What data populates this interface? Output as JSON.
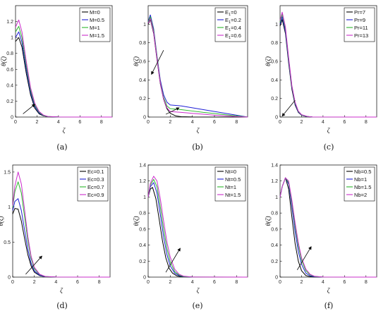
{
  "chart_data": [
    {
      "type": "line",
      "caption": "(a)",
      "xlabel": "ζ",
      "ylabel": "θ(ζ)",
      "xlim": [
        0,
        9
      ],
      "ylim": [
        0,
        1.4
      ],
      "xticks": [
        0,
        2,
        4,
        6,
        8
      ],
      "yticks": [
        0,
        0.2,
        0.4,
        0.6,
        0.8,
        1,
        1.2
      ],
      "legend_position": "top-right",
      "arrow": {
        "from": [
          0.7,
          0.04
        ],
        "to": [
          1.8,
          0.16
        ]
      },
      "series": [
        {
          "name": "M=0",
          "color": "#000000",
          "x": [
            0,
            0.3,
            0.6,
            1.0,
            1.4,
            1.8,
            2.2,
            2.6,
            3.0,
            4.0,
            9.0
          ],
          "y": [
            0.95,
            1.0,
            0.88,
            0.55,
            0.28,
            0.11,
            0.04,
            0.015,
            0.005,
            0.001,
            0.0
          ]
        },
        {
          "name": "M=0.5",
          "color": "#1f1fd6",
          "x": [
            0,
            0.3,
            0.6,
            1.0,
            1.4,
            1.8,
            2.2,
            2.6,
            3.0,
            4.0,
            9.0
          ],
          "y": [
            1.0,
            1.07,
            0.94,
            0.6,
            0.31,
            0.13,
            0.05,
            0.018,
            0.006,
            0.001,
            0.0
          ]
        },
        {
          "name": "M=1",
          "color": "#2db82d",
          "x": [
            0,
            0.3,
            0.6,
            1.0,
            1.4,
            1.8,
            2.2,
            2.6,
            3.0,
            4.0,
            9.0
          ],
          "y": [
            1.07,
            1.14,
            1.0,
            0.65,
            0.34,
            0.15,
            0.06,
            0.02,
            0.007,
            0.001,
            0.0
          ]
        },
        {
          "name": "M=1.5",
          "color": "#cc2dcc",
          "x": [
            0,
            0.3,
            0.6,
            1.0,
            1.4,
            1.8,
            2.2,
            2.6,
            3.0,
            4.0,
            9.0
          ],
          "y": [
            1.13,
            1.22,
            1.07,
            0.7,
            0.37,
            0.17,
            0.07,
            0.025,
            0.008,
            0.001,
            0.0
          ]
        }
      ]
    },
    {
      "type": "line",
      "caption": "(b)",
      "xlabel": "ζ",
      "ylabel": "θ(ζ)",
      "xlim": [
        0,
        9
      ],
      "ylim": [
        0,
        1.2
      ],
      "xticks": [
        0,
        2,
        4,
        6,
        8
      ],
      "yticks": [
        0,
        0.2,
        0.4,
        0.6,
        0.8,
        1
      ],
      "legend_position": "top-right",
      "arrows": [
        {
          "from": [
            1.4,
            0.72
          ],
          "to": [
            0.3,
            0.46
          ]
        },
        {
          "from": [
            1.6,
            0.03
          ],
          "to": [
            2.8,
            0.1
          ]
        }
      ],
      "series": [
        {
          "name": "E1=0",
          "color": "#000000",
          "x": [
            0,
            0.2,
            0.5,
            0.8,
            1.1,
            1.4,
            1.7,
            2.0,
            2.5,
            3.0,
            4.0,
            9.0
          ],
          "y": [
            1.0,
            1.05,
            0.9,
            0.62,
            0.36,
            0.19,
            0.09,
            0.04,
            0.012,
            0.004,
            0.001,
            0.0
          ]
        },
        {
          "name": "E1=0.2",
          "color": "#1f1fd6",
          "x": [
            0,
            0.2,
            0.5,
            0.8,
            1.1,
            1.4,
            1.7,
            2.0,
            3.0,
            4.0,
            5.0,
            6.0,
            7.0,
            8.0,
            9.0
          ],
          "y": [
            1.03,
            1.1,
            0.95,
            0.66,
            0.4,
            0.24,
            0.16,
            0.13,
            0.12,
            0.1,
            0.08,
            0.06,
            0.04,
            0.02,
            0.0
          ]
        },
        {
          "name": "E1=0.4",
          "color": "#2db82d",
          "x": [
            0,
            0.2,
            0.5,
            0.8,
            1.1,
            1.4,
            1.7,
            2.0,
            3.0,
            4.0,
            5.0,
            6.0,
            7.0,
            8.0,
            9.0
          ],
          "y": [
            1.02,
            1.08,
            0.93,
            0.65,
            0.38,
            0.21,
            0.12,
            0.09,
            0.08,
            0.065,
            0.05,
            0.038,
            0.025,
            0.012,
            0.0
          ]
        },
        {
          "name": "E1=0.6",
          "color": "#cc2dcc",
          "x": [
            0,
            0.2,
            0.5,
            0.8,
            1.1,
            1.4,
            1.7,
            2.0,
            3.0,
            4.0,
            5.0,
            6.0,
            7.0,
            8.0,
            9.0
          ],
          "y": [
            1.01,
            1.06,
            0.91,
            0.63,
            0.37,
            0.19,
            0.1,
            0.06,
            0.05,
            0.04,
            0.03,
            0.02,
            0.012,
            0.005,
            0.0
          ]
        }
      ]
    },
    {
      "type": "line",
      "caption": "(c)",
      "xlabel": "ζ",
      "ylabel": "θ(ζ)",
      "xlim": [
        0,
        9
      ],
      "ylim": [
        0,
        1.2
      ],
      "xticks": [
        0,
        2,
        4,
        6,
        8
      ],
      "yticks": [
        0,
        0.2,
        0.4,
        0.6,
        0.8,
        1
      ],
      "legend_position": "top-right",
      "arrow": {
        "from": [
          1.4,
          0.18
        ],
        "to": [
          0.2,
          0.01
        ]
      },
      "series": [
        {
          "name": "Pr=7",
          "color": "#000000",
          "x": [
            0,
            0.2,
            0.5,
            0.8,
            1.1,
            1.4,
            1.7,
            2.0,
            2.5,
            3.0,
            9.0
          ],
          "y": [
            0.98,
            1.05,
            0.9,
            0.58,
            0.3,
            0.13,
            0.05,
            0.02,
            0.005,
            0.001,
            0.0
          ]
        },
        {
          "name": "Pr=9",
          "color": "#1f1fd6",
          "x": [
            0,
            0.2,
            0.5,
            0.8,
            1.1,
            1.4,
            1.7,
            2.0,
            2.5,
            3.0,
            9.0
          ],
          "y": [
            1.0,
            1.08,
            0.92,
            0.6,
            0.32,
            0.14,
            0.055,
            0.022,
            0.006,
            0.001,
            0.0
          ]
        },
        {
          "name": "Pr=11",
          "color": "#2db82d",
          "x": [
            0,
            0.2,
            0.5,
            0.8,
            1.1,
            1.4,
            1.7,
            2.0,
            2.5,
            3.0,
            9.0
          ],
          "y": [
            1.02,
            1.11,
            0.95,
            0.62,
            0.33,
            0.15,
            0.06,
            0.024,
            0.007,
            0.001,
            0.0
          ]
        },
        {
          "name": "Pr=13",
          "color": "#cc2dcc",
          "x": [
            0,
            0.2,
            0.5,
            0.8,
            1.1,
            1.4,
            1.7,
            2.0,
            2.5,
            3.0,
            9.0
          ],
          "y": [
            1.04,
            1.13,
            0.97,
            0.64,
            0.34,
            0.16,
            0.065,
            0.026,
            0.008,
            0.001,
            0.0
          ]
        }
      ]
    },
    {
      "type": "line",
      "caption": "(d)",
      "xlabel": "ζ",
      "ylabel": "θ(ζ)",
      "xlim": [
        0,
        9
      ],
      "ylim": [
        0,
        1.6
      ],
      "xticks": [
        0,
        2,
        4,
        6,
        8
      ],
      "yticks": [
        0,
        0.5,
        1,
        1.5
      ],
      "legend_position": "top-right",
      "arrow": {
        "from": [
          1.2,
          0.04
        ],
        "to": [
          2.7,
          0.3
        ]
      },
      "series": [
        {
          "name": "Ec=0.1",
          "color": "#000000",
          "x": [
            0,
            0.2,
            0.5,
            0.8,
            1.1,
            1.4,
            1.7,
            2.0,
            2.5,
            3.0,
            4.0,
            9.0
          ],
          "y": [
            0.9,
            0.98,
            0.97,
            0.8,
            0.55,
            0.32,
            0.16,
            0.07,
            0.02,
            0.005,
            0.001,
            0.0
          ]
        },
        {
          "name": "Ec=0.3",
          "color": "#1f1fd6",
          "x": [
            0,
            0.2,
            0.5,
            0.8,
            1.1,
            1.4,
            1.7,
            2.0,
            2.5,
            3.0,
            4.0,
            9.0
          ],
          "y": [
            0.95,
            1.08,
            1.12,
            0.95,
            0.67,
            0.4,
            0.2,
            0.09,
            0.025,
            0.006,
            0.001,
            0.0
          ]
        },
        {
          "name": "Ec=0.7",
          "color": "#2db82d",
          "x": [
            0,
            0.2,
            0.5,
            0.8,
            1.1,
            1.4,
            1.7,
            2.0,
            2.5,
            3.0,
            4.0,
            9.0
          ],
          "y": [
            1.0,
            1.22,
            1.36,
            1.2,
            0.86,
            0.52,
            0.27,
            0.12,
            0.035,
            0.008,
            0.001,
            0.0
          ]
        },
        {
          "name": "Ec=0.9",
          "color": "#cc2dcc",
          "x": [
            0,
            0.2,
            0.5,
            0.8,
            1.1,
            1.4,
            1.7,
            2.0,
            2.5,
            3.0,
            4.0,
            9.0
          ],
          "y": [
            1.02,
            1.3,
            1.5,
            1.33,
            0.96,
            0.58,
            0.3,
            0.14,
            0.04,
            0.01,
            0.001,
            0.0
          ]
        }
      ]
    },
    {
      "type": "line",
      "caption": "(e)",
      "xlabel": "ζ",
      "ylabel": "θ(ζ)",
      "xlim": [
        0,
        9
      ],
      "ylim": [
        0,
        1.4
      ],
      "xticks": [
        0,
        2,
        4,
        6,
        8
      ],
      "yticks": [
        0,
        0.2,
        0.4,
        0.6,
        0.8,
        1,
        1.2,
        1.4
      ],
      "legend_position": "top-right",
      "arrow": {
        "from": [
          1.6,
          0.06
        ],
        "to": [
          2.9,
          0.36
        ]
      },
      "series": [
        {
          "name": "Nt=0",
          "color": "#000000",
          "x": [
            0,
            0.2,
            0.4,
            0.7,
            1.0,
            1.3,
            1.6,
            1.9,
            2.2,
            2.6,
            3.0,
            4.0,
            9.0
          ],
          "y": [
            1.0,
            1.1,
            1.12,
            0.98,
            0.72,
            0.45,
            0.24,
            0.11,
            0.05,
            0.015,
            0.004,
            0.001,
            0.0
          ]
        },
        {
          "name": "Nt=0.5",
          "color": "#1f1fd6",
          "x": [
            0,
            0.2,
            0.5,
            0.8,
            1.1,
            1.4,
            1.7,
            2.0,
            2.4,
            2.8,
            3.2,
            4.0,
            9.0
          ],
          "y": [
            1.0,
            1.13,
            1.18,
            1.05,
            0.78,
            0.5,
            0.28,
            0.14,
            0.05,
            0.017,
            0.005,
            0.001,
            0.0
          ]
        },
        {
          "name": "Nt=1",
          "color": "#2db82d",
          "x": [
            0,
            0.2,
            0.5,
            0.8,
            1.1,
            1.4,
            1.7,
            2.0,
            2.4,
            2.8,
            3.2,
            4.0,
            9.0
          ],
          "y": [
            1.0,
            1.15,
            1.22,
            1.13,
            0.88,
            0.6,
            0.36,
            0.19,
            0.07,
            0.025,
            0.008,
            0.001,
            0.0
          ]
        },
        {
          "name": "Nt=1.5",
          "color": "#cc2dcc",
          "x": [
            0,
            0.2,
            0.5,
            0.8,
            1.1,
            1.4,
            1.7,
            2.0,
            2.4,
            2.8,
            3.2,
            4.0,
            9.0
          ],
          "y": [
            1.0,
            1.17,
            1.26,
            1.2,
            0.98,
            0.7,
            0.44,
            0.25,
            0.1,
            0.035,
            0.012,
            0.001,
            0.0
          ]
        }
      ]
    },
    {
      "type": "line",
      "caption": "(f)",
      "xlabel": "ζ",
      "ylabel": "θ(ζ)",
      "xlim": [
        0,
        9
      ],
      "ylim": [
        0,
        1.4
      ],
      "xticks": [
        0,
        2,
        4,
        6,
        8
      ],
      "yticks": [
        0,
        0.2,
        0.4,
        0.6,
        0.8,
        1,
        1.2,
        1.4
      ],
      "legend_position": "top-right",
      "arrow": {
        "from": [
          1.6,
          0.09
        ],
        "to": [
          2.9,
          0.38
        ]
      },
      "series": [
        {
          "name": "Nb=0.5",
          "color": "#000000",
          "x": [
            0,
            0.2,
            0.5,
            0.8,
            1.1,
            1.4,
            1.7,
            2.0,
            2.4,
            2.8,
            3.2,
            4.0,
            9.0
          ],
          "y": [
            1.0,
            1.13,
            1.24,
            1.1,
            0.75,
            0.42,
            0.2,
            0.08,
            0.02,
            0.005,
            0.001,
            0.0,
            0.0
          ]
        },
        {
          "name": "Nb=1",
          "color": "#1f1fd6",
          "x": [
            0,
            0.2,
            0.5,
            0.8,
            1.1,
            1.4,
            1.7,
            2.0,
            2.4,
            2.8,
            3.2,
            4.0,
            9.0
          ],
          "y": [
            1.0,
            1.13,
            1.24,
            1.16,
            0.88,
            0.57,
            0.32,
            0.16,
            0.05,
            0.015,
            0.004,
            0.001,
            0.0
          ]
        },
        {
          "name": "Nb=1.5",
          "color": "#2db82d",
          "x": [
            0,
            0.2,
            0.5,
            0.8,
            1.1,
            1.4,
            1.7,
            2.0,
            2.4,
            2.8,
            3.2,
            4.0,
            9.0
          ],
          "y": [
            1.0,
            1.13,
            1.24,
            1.18,
            0.93,
            0.64,
            0.39,
            0.21,
            0.08,
            0.027,
            0.008,
            0.001,
            0.0
          ]
        },
        {
          "name": "Nb=2",
          "color": "#cc2dcc",
          "x": [
            0,
            0.2,
            0.5,
            0.8,
            1.1,
            1.4,
            1.7,
            2.0,
            2.4,
            2.8,
            3.2,
            4.0,
            9.0
          ],
          "y": [
            1.0,
            1.13,
            1.24,
            1.2,
            0.96,
            0.68,
            0.43,
            0.24,
            0.1,
            0.035,
            0.011,
            0.001,
            0.0
          ]
        }
      ]
    }
  ]
}
